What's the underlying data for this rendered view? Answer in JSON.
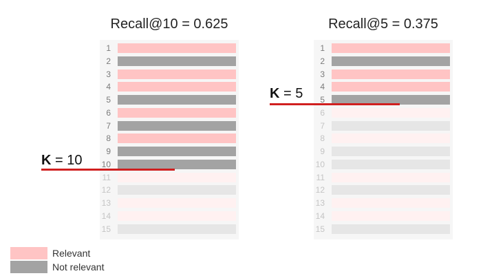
{
  "colors": {
    "relevant": "#ffc4c4",
    "not_relevant": "#a3a3a3",
    "relevant_faded": "#fff1f1",
    "not_relevant_faded": "#e6e6e6",
    "k_line": "#d01f1f"
  },
  "panels": [
    {
      "title": "Recall@10 = 0.625",
      "k_symbol": "K",
      "k_value": "= 10",
      "k": 10,
      "items": [
        {
          "rank": "1",
          "relevant": true
        },
        {
          "rank": "2",
          "relevant": false
        },
        {
          "rank": "3",
          "relevant": true
        },
        {
          "rank": "4",
          "relevant": true
        },
        {
          "rank": "5",
          "relevant": false
        },
        {
          "rank": "6",
          "relevant": true
        },
        {
          "rank": "7",
          "relevant": false
        },
        {
          "rank": "8",
          "relevant": true
        },
        {
          "rank": "9",
          "relevant": false
        },
        {
          "rank": "10",
          "relevant": false
        },
        {
          "rank": "11",
          "relevant": true
        },
        {
          "rank": "12",
          "relevant": false
        },
        {
          "rank": "13",
          "relevant": true
        },
        {
          "rank": "14",
          "relevant": true
        },
        {
          "rank": "15",
          "relevant": false
        }
      ]
    },
    {
      "title": "Recall@5 = 0.375",
      "k_symbol": "K",
      "k_value": "= 5",
      "k": 5,
      "items": [
        {
          "rank": "1",
          "relevant": true
        },
        {
          "rank": "2",
          "relevant": false
        },
        {
          "rank": "3",
          "relevant": true
        },
        {
          "rank": "4",
          "relevant": true
        },
        {
          "rank": "5",
          "relevant": false
        },
        {
          "rank": "6",
          "relevant": true
        },
        {
          "rank": "7",
          "relevant": false
        },
        {
          "rank": "8",
          "relevant": true
        },
        {
          "rank": "9",
          "relevant": false
        },
        {
          "rank": "10",
          "relevant": false
        },
        {
          "rank": "11",
          "relevant": true
        },
        {
          "rank": "12",
          "relevant": false
        },
        {
          "rank": "13",
          "relevant": true
        },
        {
          "rank": "14",
          "relevant": true
        },
        {
          "rank": "15",
          "relevant": false
        }
      ]
    }
  ],
  "legend": {
    "relevant_label": "Relevant",
    "not_relevant_label": "Not relevant"
  }
}
